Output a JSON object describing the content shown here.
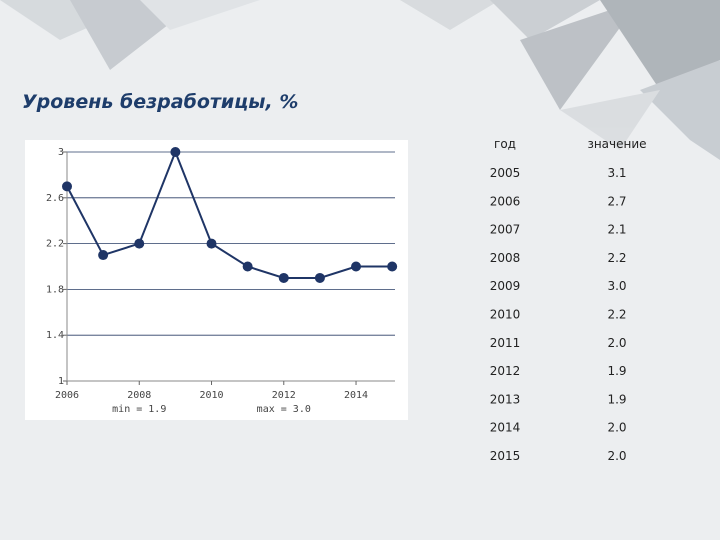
{
  "chart_data": {
    "type": "line",
    "title": "Уровень безработицы, %",
    "x": [
      2006,
      2007,
      2008,
      2009,
      2010,
      2011,
      2012,
      2013,
      2014,
      2015
    ],
    "series": [
      {
        "name": null,
        "color": "#1f3566",
        "values": [
          2.7,
          2.1,
          2.2,
          3.0,
          2.2,
          2.0,
          1.9,
          1.9,
          2.0,
          2.0
        ]
      }
    ],
    "xlim": [
      2006,
      2015.3
    ],
    "xticks": [
      2006,
      2008,
      2010,
      2012,
      2014
    ],
    "ylim": [
      1,
      3
    ],
    "yticks": [
      1,
      1.4,
      1.8,
      2.2,
      2.6,
      3
    ],
    "grid": true,
    "annotations": [
      "min = 1.9",
      "max = 3.0"
    ]
  },
  "table": {
    "header": [
      "год",
      "значение"
    ],
    "rows": [
      [
        "2005",
        "3.1"
      ],
      [
        "2006",
        "2.7"
      ],
      [
        "2007",
        "2.1"
      ],
      [
        "2008",
        "2.2"
      ],
      [
        "2009",
        "3.0"
      ],
      [
        "2010",
        "2.2"
      ],
      [
        "2011",
        "2.0"
      ],
      [
        "2012",
        "1.9"
      ],
      [
        "2013",
        "1.9"
      ],
      [
        "2014",
        "2.0"
      ],
      [
        "2015",
        "2.0"
      ]
    ]
  }
}
